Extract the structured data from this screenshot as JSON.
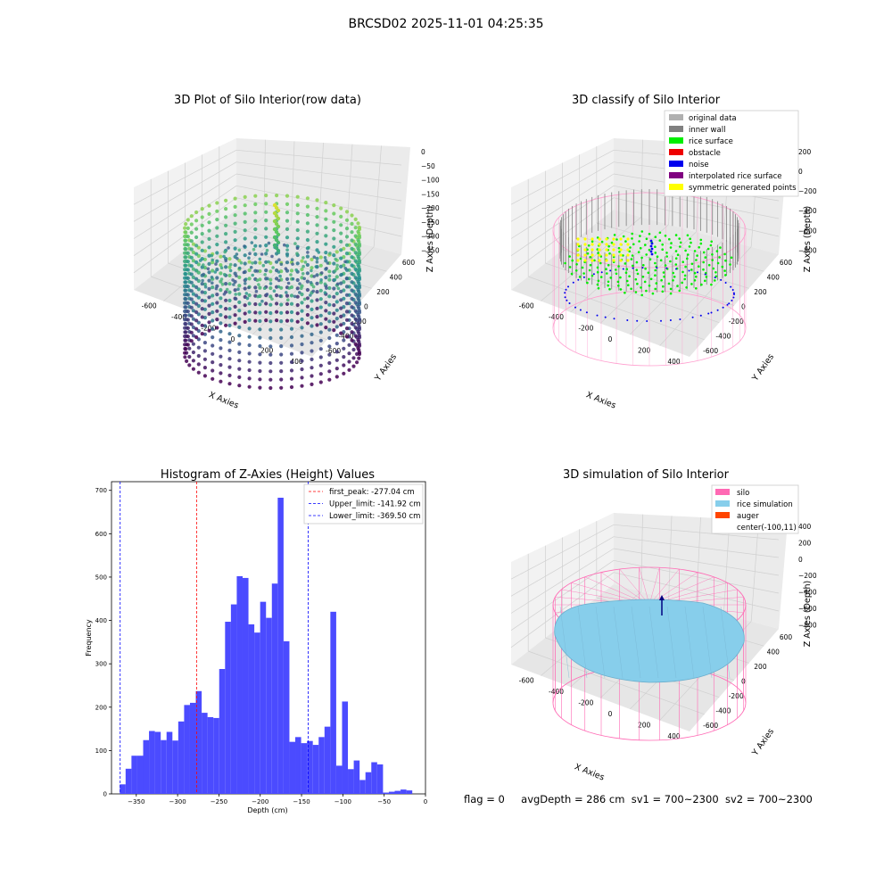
{
  "suptitle": "BRCSD02 2025-11-01 04:25:35",
  "panels": {
    "raw": {
      "title": "3D Plot of Silo Interior(row data)",
      "xlabel": "X Axies",
      "ylabel": "Y Axies",
      "zlabel": "Z Axies (Depth)",
      "x_ticks": [
        "-600",
        "-400",
        "-200",
        "0",
        "200",
        "400"
      ],
      "y_ticks": [
        "-600",
        "-400",
        "-200",
        "0",
        "200",
        "400",
        "600"
      ],
      "z_ticks": [
        "0",
        "−50",
        "−100",
        "−150",
        "−200",
        "−250",
        "−300",
        "−350"
      ]
    },
    "classify": {
      "title": "3D classify of Silo Interior",
      "xlabel": "X Axies",
      "ylabel": "Y Axies",
      "zlabel": "Z Axies (Depth)",
      "x_ticks": [
        "-600",
        "-400",
        "-200",
        "0",
        "200",
        "400"
      ],
      "y_ticks": [
        "-600",
        "-400",
        "-200",
        "0",
        "200",
        "400",
        "600"
      ],
      "z_ticks": [
        "200",
        "0",
        "−200",
        "−400",
        "−600",
        "−800"
      ],
      "legend": [
        {
          "label": "original data",
          "color": "#b0b0b0"
        },
        {
          "label": "inner wall",
          "color": "#808080"
        },
        {
          "label": "rice surface",
          "color": "#00ee00"
        },
        {
          "label": "obstacle",
          "color": "#ee0000"
        },
        {
          "label": "noise",
          "color": "#0000ee"
        },
        {
          "label": "interpolated rice surface",
          "color": "#800080"
        },
        {
          "label": "symmetric generated points",
          "color": "#ffff00"
        }
      ]
    },
    "simulation": {
      "title": "3D simulation of Silo Interior",
      "xlabel": "X Axies",
      "ylabel": "Y Axies",
      "zlabel": "Z Axies (Depth)",
      "x_ticks": [
        "-600",
        "-400",
        "-200",
        "0",
        "200",
        "400"
      ],
      "y_ticks": [
        "-600",
        "-400",
        "-200",
        "0",
        "200",
        "400",
        "600"
      ],
      "z_ticks": [
        "400",
        "200",
        "0",
        "−200",
        "−400",
        "−600",
        "−800"
      ],
      "legend": [
        {
          "label": "silo",
          "color": "#ff69b4"
        },
        {
          "label": "rice simulation",
          "color": "#87ceeb"
        },
        {
          "label": "auger",
          "color": "#ff4500"
        },
        {
          "label": "center(-100,11)",
          "color": ""
        }
      ]
    }
  },
  "chart_data": [
    {
      "type": "bar",
      "title": "Histogram of Z-Axies (Height) Values",
      "xlabel": "Depth (cm)",
      "ylabel": "Frequency",
      "xlim": [
        -380,
        0
      ],
      "ylim": [
        0,
        720
      ],
      "x_ticks": [
        "−350",
        "−300",
        "−250",
        "−200",
        "−150",
        "−100",
        "−50",
        "0"
      ],
      "y_ticks": [
        "0",
        "100",
        "200",
        "300",
        "400",
        "500",
        "600",
        "700"
      ],
      "bar_color": "#4b4bff",
      "bin_edges": [
        -370.0,
        -362.92,
        -355.84,
        -348.76,
        -341.68,
        -334.6,
        -327.52,
        -320.44,
        -313.36,
        -306.28,
        -299.2,
        -292.12,
        -285.04,
        -277.96,
        -270.88,
        -263.8,
        -256.72,
        -249.64,
        -242.56,
        -235.48,
        -228.4,
        -221.32,
        -214.24,
        -207.16,
        -200.08,
        -193.0,
        -185.92,
        -178.84,
        -171.76,
        -164.68,
        -157.6,
        -150.52,
        -143.44,
        -136.36,
        -129.28,
        -122.2,
        -115.12,
        -108.04,
        -100.96,
        -93.88,
        -86.8,
        -79.72,
        -72.64,
        -65.56,
        -58.48,
        -51.4,
        -44.32,
        -37.24,
        -30.16,
        -23.08,
        -16.0
      ],
      "counts": [
        22,
        58,
        88,
        88,
        124,
        145,
        143,
        124,
        143,
        123,
        167,
        205,
        210,
        237,
        187,
        177,
        175,
        288,
        397,
        437,
        502,
        498,
        391,
        372,
        443,
        406,
        485,
        683,
        352,
        120,
        131,
        117,
        122,
        113,
        131,
        155,
        420,
        65,
        213,
        57,
        77,
        32,
        50,
        73,
        68,
        3,
        5,
        7,
        10,
        8
      ],
      "vlines": [
        {
          "label": "first_peak: -277.04 cm",
          "x": -277.04,
          "color": "#ff0000"
        },
        {
          "label": "Upper_limit: -141.92 cm",
          "x": -141.92,
          "color": "#0000ff"
        },
        {
          "label": "Lower_limit: -369.50 cm",
          "x": -369.5,
          "color": "#0000ff"
        }
      ],
      "legend_position": "upper right"
    }
  ],
  "status": {
    "flag": "flag = 0",
    "avg_depth": "avgDepth = 286 cm",
    "sv1": "sv1 = 700~2300",
    "sv2": "sv2 = 700~2300"
  }
}
